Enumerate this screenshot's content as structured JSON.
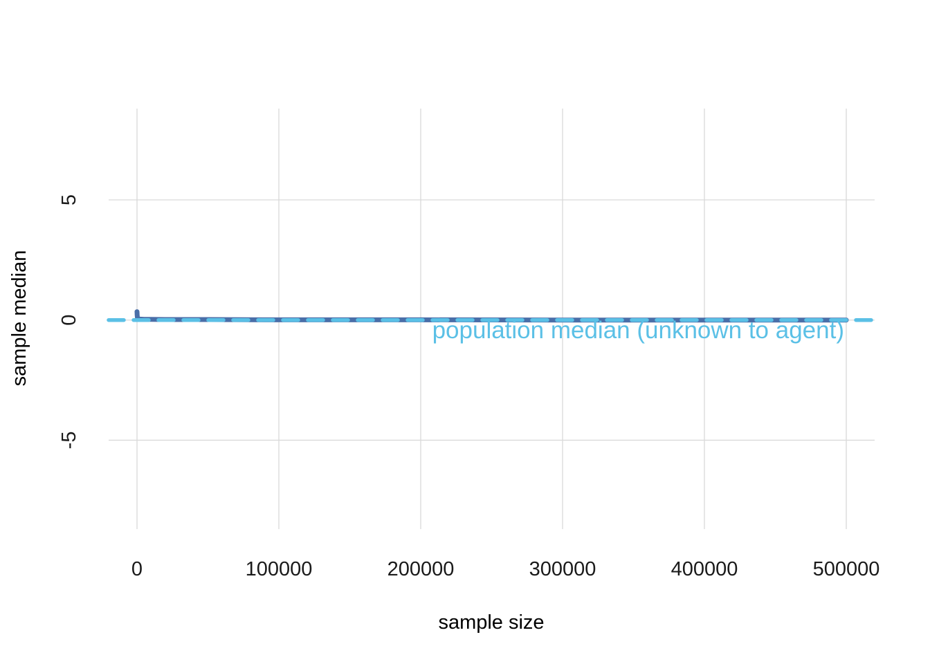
{
  "chart_data": {
    "type": "line",
    "xlabel": "sample size",
    "ylabel": "sample median",
    "xlim": [
      -20000,
      520000
    ],
    "ylim": [
      -8.7,
      8.8
    ],
    "x_ticks": [
      0,
      100000,
      200000,
      300000,
      400000,
      500000
    ],
    "x_tick_labels": [
      "0",
      "100000",
      "200000",
      "300000",
      "400000",
      "500000"
    ],
    "y_ticks": [
      -5,
      0,
      5
    ],
    "y_tick_labels": [
      "-5",
      "0",
      "5"
    ],
    "grid": true,
    "series": [
      {
        "style": "solid",
        "color": "#4a6ea8",
        "x": [
          1,
          50,
          100,
          200,
          300,
          500,
          800,
          1000,
          2000,
          5000,
          10000,
          20000,
          50000,
          100000,
          200000,
          300000,
          400000,
          500000
        ],
        "y": [
          0.35,
          0.3,
          0.22,
          0.15,
          0.1,
          0.06,
          0.05,
          0.04,
          0.04,
          0.03,
          0.03,
          0.02,
          0.02,
          0.01,
          0.01,
          0.0,
          0.0,
          0.0
        ]
      }
    ],
    "reference_line": {
      "y": 0,
      "style": "dashed",
      "color": "#5bc0e6",
      "label": "population median (unknown to agent)"
    }
  }
}
